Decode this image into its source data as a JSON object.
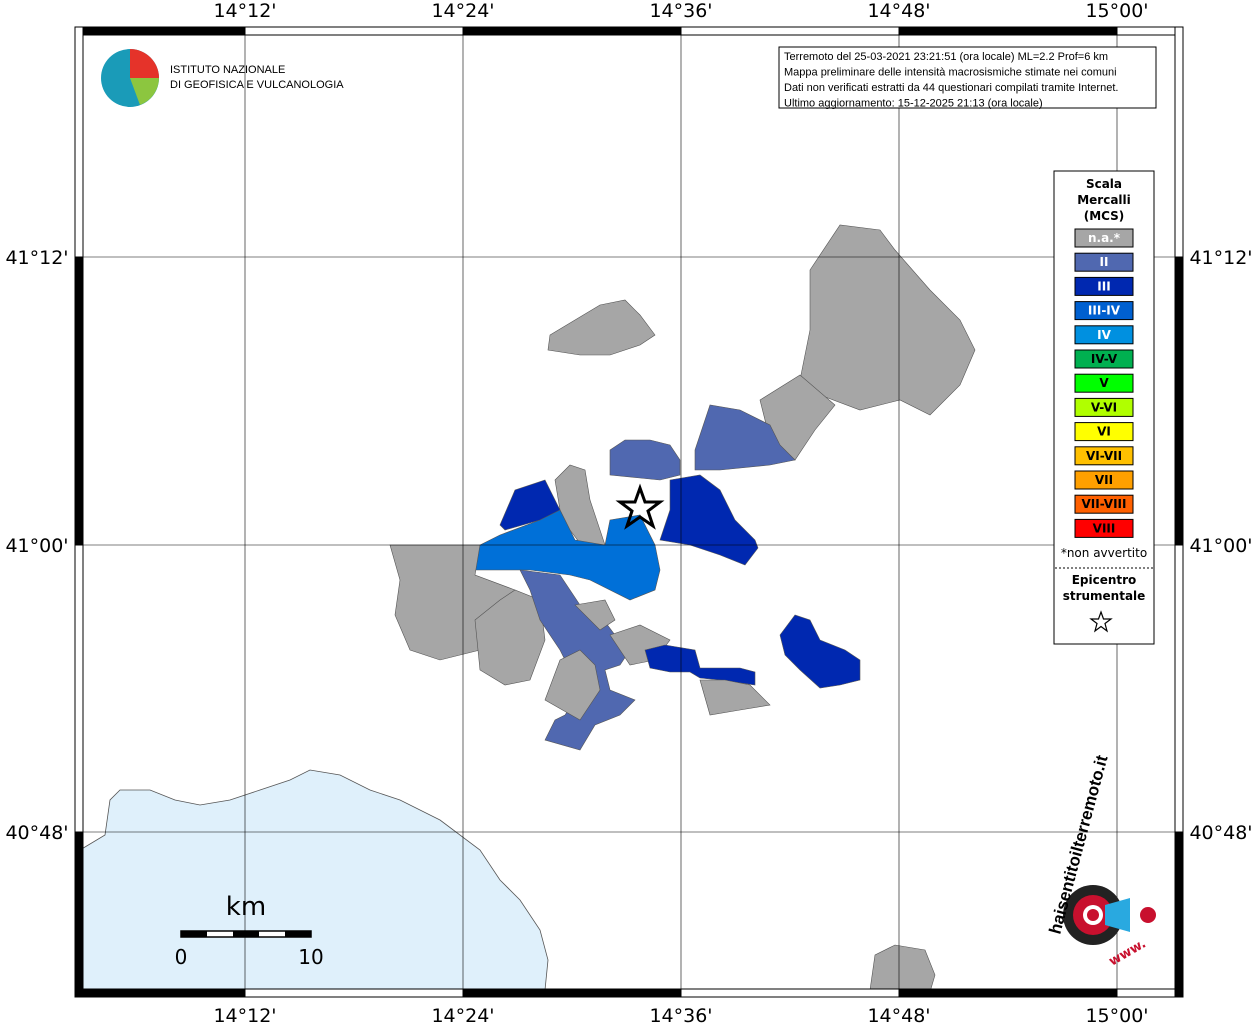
{
  "map": {
    "xtick_labels": [
      "14°12'",
      "14°24'",
      "14°36'",
      "14°48'",
      "15°00'"
    ],
    "ytick_labels": [
      "41°12'",
      "41°00'",
      "40°48'"
    ],
    "info": [
      "Terremoto del 25-03-2021 23:21:51 (ora locale) ML=2.2 Prof=6 km",
      "Mappa preliminare delle intensità macrosismiche stimate nei comuni",
      "Dati non verificati estratti da 44 questionari compilati tramite Internet.",
      "Ultimo aggiornamento: 15-12-2025 21:13 (ora locale)"
    ],
    "logo": [
      "ISTITUTO NAZIONALE",
      "DI GEOFISICA E VULCANOLOGIA"
    ],
    "legend": {
      "title": [
        "Scala",
        "Mercalli",
        "(MCS)"
      ],
      "items": [
        {
          "label": "n.a.*",
          "color": "#a6a6a6"
        },
        {
          "label": "II",
          "color": "#5068b0"
        },
        {
          "label": "III",
          "color": "#0028b0"
        },
        {
          "label": "III-IV",
          "color": "#0060d0"
        },
        {
          "label": "IV",
          "color": "#0090e0"
        },
        {
          "label": "IV-V",
          "color": "#00b050"
        },
        {
          "label": "V",
          "color": "#00ff00"
        },
        {
          "label": "V-VI",
          "color": "#b0ff00"
        },
        {
          "label": "VI",
          "color": "#ffff00"
        },
        {
          "label": "VI-VII",
          "color": "#ffc000"
        },
        {
          "label": "VII",
          "color": "#ffa000"
        },
        {
          "label": "VII-VIII",
          "color": "#ff6000"
        },
        {
          "label": "VIII",
          "color": "#ff0000"
        }
      ],
      "note": "*non avvertito",
      "epicenter": [
        "Epicentro",
        "strumentale"
      ]
    },
    "scale": {
      "unit": "km",
      "labels": [
        "0",
        "10"
      ]
    },
    "site_logo": {
      "name": "haisentitoilterremoto.it",
      "prefix": "www."
    }
  }
}
